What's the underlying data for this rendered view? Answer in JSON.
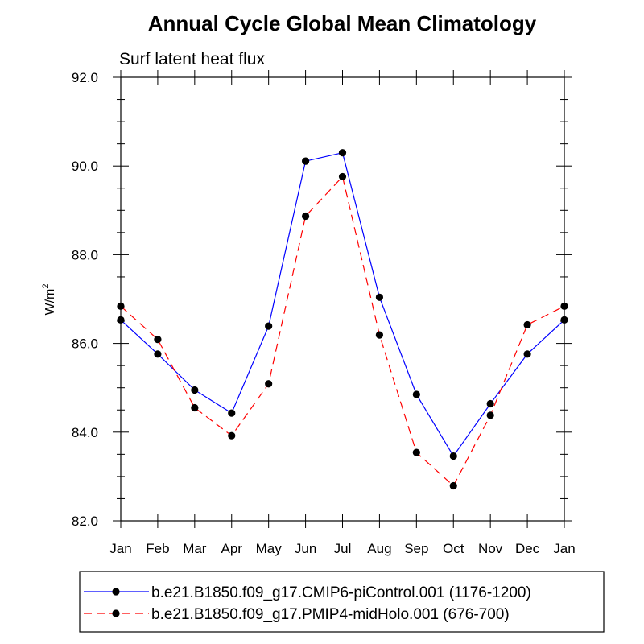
{
  "chart_data": {
    "type": "line",
    "title": "Annual Cycle Global Mean Climatology",
    "subtitle": "Surf latent heat flux",
    "ylabel": "W/m",
    "ylabel_superscript": "2",
    "ylim": [
      82.0,
      92.0
    ],
    "y_ticks": [
      "82.0",
      "84.0",
      "86.0",
      "88.0",
      "90.0",
      "92.0"
    ],
    "categories": [
      "Jan",
      "Feb",
      "Mar",
      "Apr",
      "May",
      "Jun",
      "Jul",
      "Aug",
      "Sep",
      "Oct",
      "Nov",
      "Dec",
      "Jan"
    ],
    "series": [
      {
        "name": "b.e21.B1850.f09_g17.CMIP6-piControl.001 (1176-1200)",
        "color": "#0000ff",
        "dash": "solid",
        "values": [
          86.53,
          85.76,
          84.95,
          84.43,
          86.39,
          90.11,
          90.3,
          87.04,
          84.85,
          83.46,
          84.64,
          85.76,
          86.53
        ]
      },
      {
        "name": "b.e21.B1850.f09_g17.PMIP4-midHolo.001 (676-700)",
        "color": "#ff0000",
        "dash": "dashed",
        "values": [
          86.84,
          86.09,
          84.55,
          83.92,
          85.09,
          88.87,
          89.76,
          86.19,
          83.54,
          82.79,
          84.38,
          86.42,
          86.84
        ]
      }
    ],
    "grid": false,
    "legend_position": "bottom"
  }
}
